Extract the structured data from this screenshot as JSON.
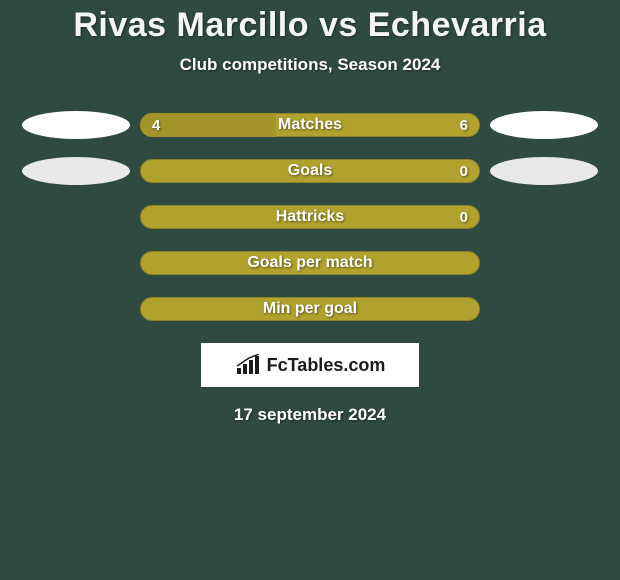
{
  "title": "Rivas Marcillo vs Echevarria",
  "subtitle": "Club competitions, Season 2024",
  "date": "17 september 2024",
  "footer_brand": "FcTables.com",
  "colors": {
    "background": "#2e4a41",
    "bar_primary": "#b1a22e",
    "bar_secondary": "#a3942a",
    "bar_border_dark": "#8d8026",
    "oval_white": "#ffffff",
    "oval_light": "#e8e8e8",
    "text": "#ffffff"
  },
  "rows": [
    {
      "label": "Matches",
      "left_value": "4",
      "right_value": "6",
      "left_pct": 40,
      "right_pct": 60,
      "left_color": "#a3942a",
      "right_color": "#b1a22e",
      "show_values": true,
      "left_oval": "white",
      "right_oval": "white"
    },
    {
      "label": "Goals",
      "left_value": "",
      "right_value": "0",
      "left_pct": 0,
      "right_pct": 100,
      "left_color": "#a3942a",
      "right_color": "#b1a22e",
      "show_values": true,
      "left_oval": "light",
      "right_oval": "light"
    },
    {
      "label": "Hattricks",
      "left_value": "",
      "right_value": "0",
      "left_pct": 0,
      "right_pct": 100,
      "left_color": "#a3942a",
      "right_color": "#b1a22e",
      "show_values": true,
      "left_oval": null,
      "right_oval": null
    },
    {
      "label": "Goals per match",
      "left_value": "",
      "right_value": "",
      "left_pct": 0,
      "right_pct": 100,
      "left_color": "#a3942a",
      "right_color": "#b1a22e",
      "show_values": false,
      "left_oval": null,
      "right_oval": null
    },
    {
      "label": "Min per goal",
      "left_value": "",
      "right_value": "",
      "left_pct": 0,
      "right_pct": 100,
      "left_color": "#a3942a",
      "right_color": "#b1a22e",
      "show_values": false,
      "left_oval": null,
      "right_oval": null
    }
  ]
}
